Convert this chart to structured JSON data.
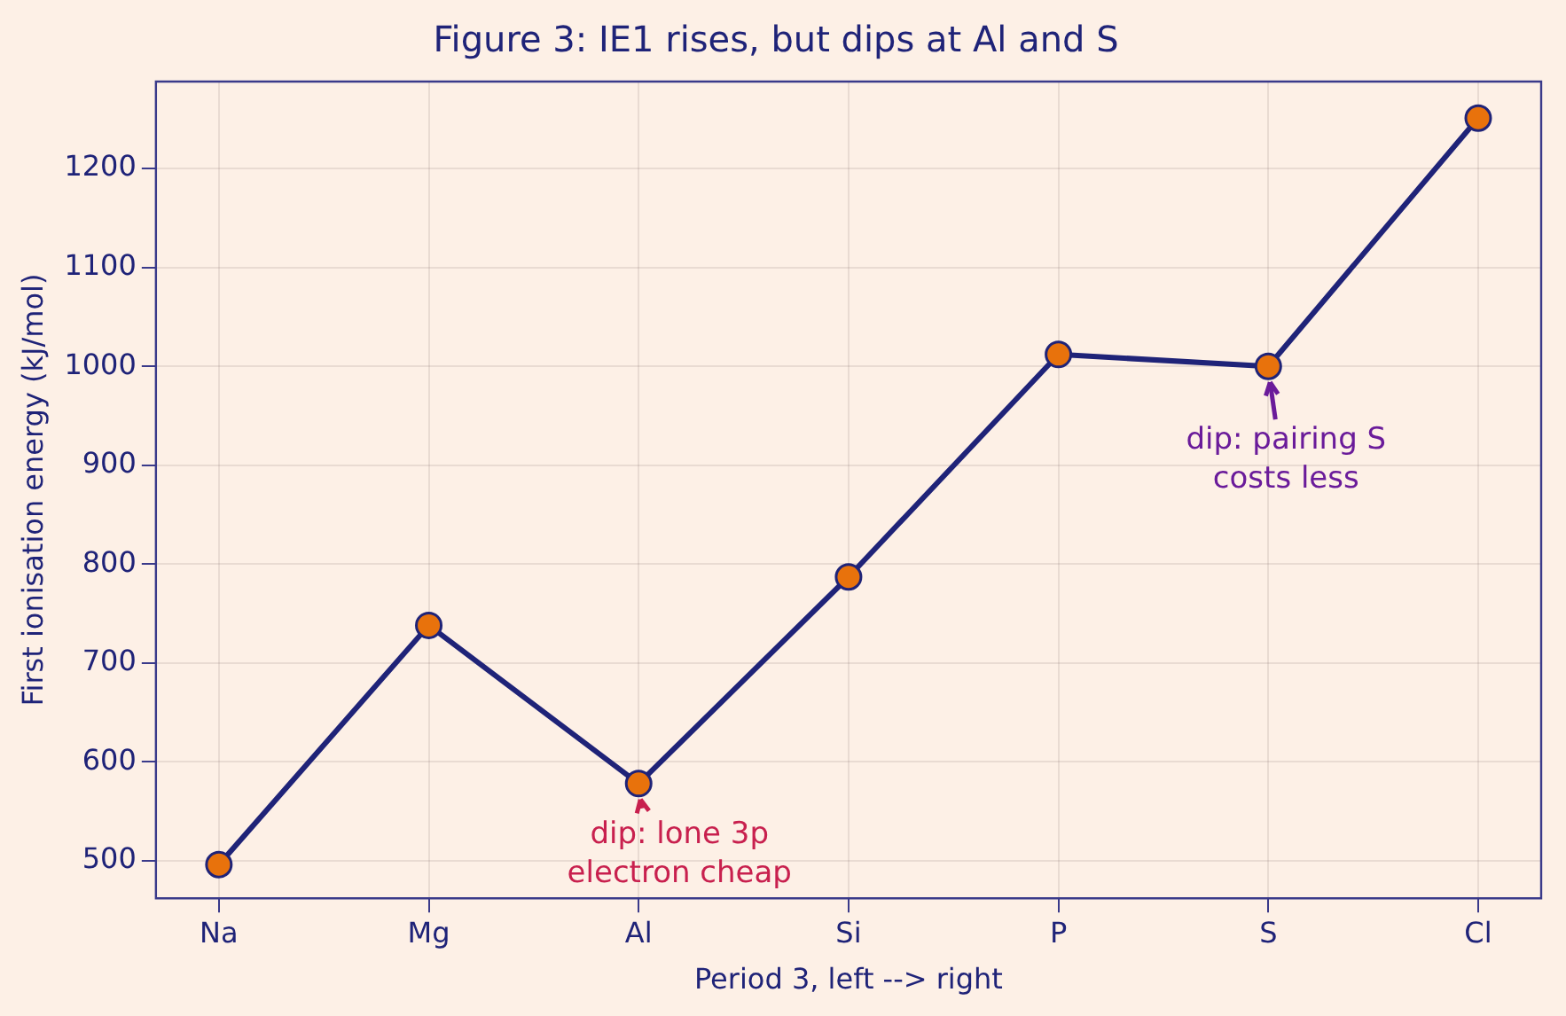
{
  "chart_data": {
    "type": "line",
    "title": "Figure 3: IE1 rises, but dips at Al and S",
    "xlabel": "Period 3, left --> right",
    "ylabel": "First ionisation energy (kJ/mol)",
    "categories": [
      "Na",
      "Mg",
      "Al",
      "Si",
      "P",
      "S",
      "Cl"
    ],
    "series": [
      {
        "color": "#1f2378",
        "values": [
          496,
          738,
          578,
          787,
          1012,
          1000,
          1251
        ]
      }
    ],
    "ylim": [
      462,
      1288
    ],
    "yticks": [
      500,
      600,
      700,
      800,
      900,
      1000,
      1100,
      1200
    ],
    "grid": true,
    "legend": false,
    "marker": "circle",
    "line_style": "solid",
    "annotations": [
      {
        "text": "dip: lone 3p\nelectron cheap",
        "x": "Al",
        "y": 578
      },
      {
        "text": "dip: pairing S\ncosts less",
        "x": "S",
        "y": 1000
      }
    ]
  }
}
